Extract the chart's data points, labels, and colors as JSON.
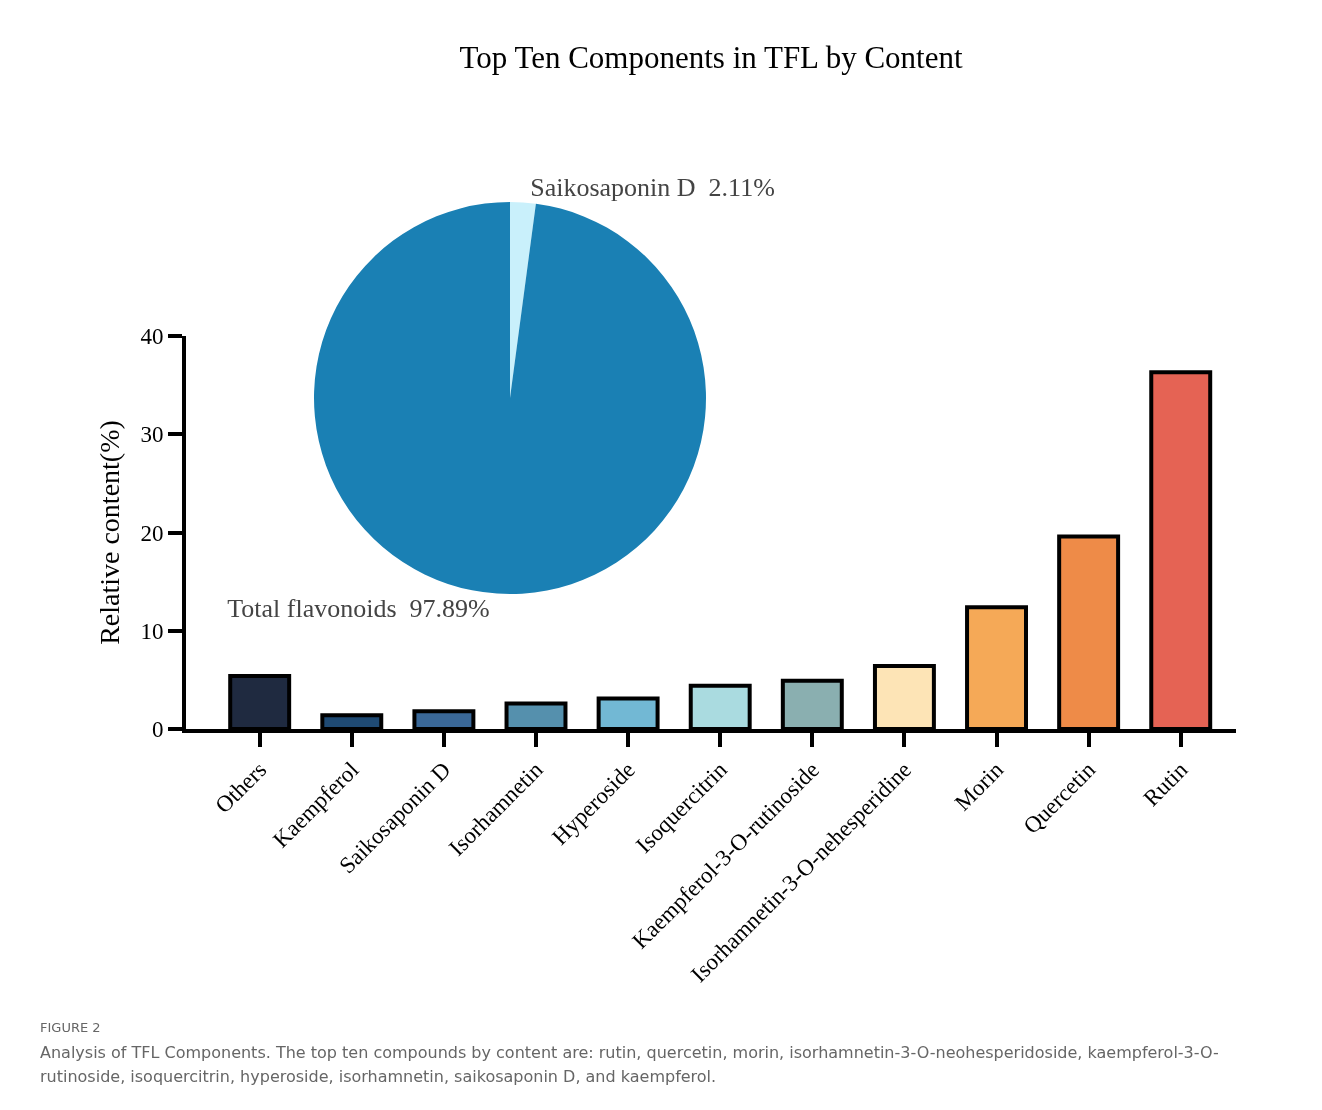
{
  "chart_data": [
    {
      "type": "bar",
      "title": "Top Ten Components in TFL by Content",
      "ylabel": "Relative content(%)",
      "categories": [
        "Others",
        "Kaempferol",
        "Saikosaponin D",
        "Isorhamnetin",
        "Hyperoside",
        "Isoquercitrin",
        "Kaempferol-3-O-rutinoside",
        "Isorhamnetin-3-O-nehesperidine",
        "Morin",
        "Quercetin",
        "Rutin"
      ],
      "values": [
        5.4,
        1.4,
        1.8,
        2.6,
        3.1,
        4.4,
        4.9,
        6.4,
        12.4,
        19.6,
        36.3
      ],
      "colors": [
        "#1f2a40",
        "#1f4a73",
        "#3a6898",
        "#5590ad",
        "#72b8d4",
        "#aadbe0",
        "#8aafb0",
        "#fde4b6",
        "#f5a957",
        "#ee8b48",
        "#e56354"
      ],
      "ylim": [
        0,
        40
      ],
      "yticks": [
        0,
        10,
        20,
        30,
        40
      ],
      "annotations": [
        "FIGURE 2",
        "Analysis of TFL Components. The top ten compounds by content are: rutin, quercetin, morin, isorhamnetin-3-O-neohesperidoside, kaempferol-3-O-rutinoside, isoquercitrin, hyperoside, isorhamnetin, saikosaponin D, and kaempferol."
      ]
    },
    {
      "type": "pie",
      "categories": [
        "Saikosaponin D",
        "Total flavonoids"
      ],
      "values": [
        2.11,
        97.89
      ],
      "colors": [
        "#c9f0fb",
        "#1a80b4"
      ],
      "value_labels": [
        "2.11%",
        "97.89%"
      ]
    }
  ]
}
